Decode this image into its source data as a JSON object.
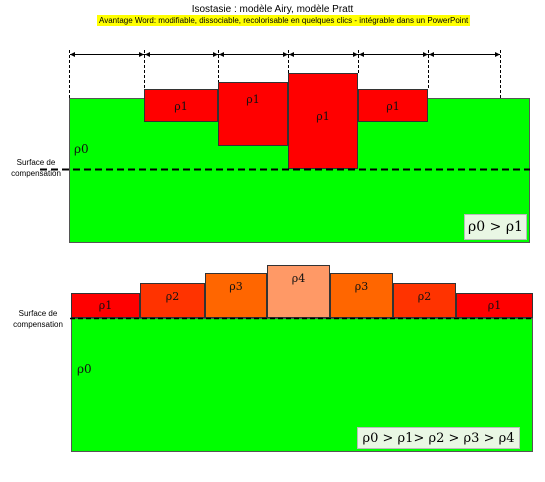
{
  "header": {
    "title": "Isostasie : modèle Airy, modèle Pratt",
    "subtitle": "Avantage Word: modifiable, dissociable, recolorisable en quelques clics - intégrable dans un PowerPoint"
  },
  "airy": {
    "blocks": [
      {
        "label": "ρ1"
      },
      {
        "label": "ρ1"
      },
      {
        "label": "ρ1"
      },
      {
        "label": "ρ1"
      }
    ],
    "rho0": "ρ0",
    "surface_label": "Surface de compensation",
    "legend": "ρ0 > ρ1"
  },
  "pratt": {
    "blocks": [
      {
        "label": "ρ1"
      },
      {
        "label": "ρ2"
      },
      {
        "label": "ρ3"
      },
      {
        "label": "ρ4"
      },
      {
        "label": "ρ3"
      },
      {
        "label": "ρ2"
      },
      {
        "label": "ρ1"
      }
    ],
    "rho0": "ρ0",
    "surface_label": "Surface de compensation",
    "legend": "ρ0 > ρ1> ρ2 > ρ3 > ρ4"
  },
  "colors": {
    "mantle": "#00ff00",
    "rho1": "#ff0000",
    "rho2": "#ff3300",
    "rho3": "#ff6600",
    "rho4": "#ff9966",
    "highlight": "#ffff00"
  }
}
